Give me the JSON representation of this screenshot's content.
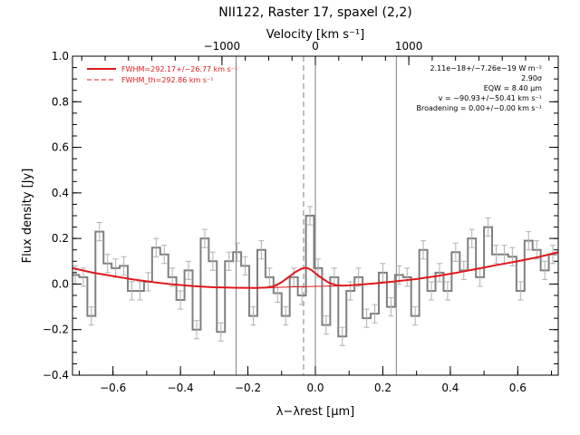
{
  "chart_data": {
    "type": "line",
    "title": "NII122, Raster 17, spaxel (2,2)",
    "xlabel": "λ−λrest [μm]",
    "ylabel": "Flux density [Jy]",
    "top_xlabel": "Velocity [km s⁻¹]",
    "xlim": [
      -0.72,
      0.72
    ],
    "ylim": [
      -0.4,
      1.0
    ],
    "x_ticks": [
      -0.6,
      -0.4,
      -0.2,
      0.0,
      0.2,
      0.4,
      0.6
    ],
    "x_tick_labels": [
      "−0.6",
      "−0.4",
      "−0.2",
      "0.0",
      "0.2",
      "0.4",
      "0.6"
    ],
    "y_ticks": [
      -0.4,
      -0.2,
      0.0,
      0.2,
      0.4,
      0.6,
      0.8,
      1.0
    ],
    "y_tick_labels": [
      "−0.4",
      "−0.2",
      "0.0",
      "0.2",
      "0.4",
      "0.6",
      "0.8",
      "1.0"
    ],
    "top_x_ticks": [
      -1000,
      0,
      1000
    ],
    "top_x_tick_labels": [
      "−1000",
      "0",
      "1000"
    ],
    "vertical_lines": [
      {
        "x": -0.235,
        "style": "solid"
      },
      {
        "x": -0.035,
        "style": "dashed"
      },
      {
        "x": 0.0,
        "style": "solid"
      },
      {
        "x": 0.24,
        "style": "solid"
      }
    ],
    "legend": {
      "placement": "top-left",
      "entries": [
        {
          "label": "FWHM=292.17+/−26.77 km s⁻¹",
          "style": "solid",
          "color": "#e0191d"
        },
        {
          "label": "FWHM_th=292.86 km s⁻¹",
          "style": "dashed",
          "color": "#e0191d"
        }
      ]
    },
    "annotations": [
      "2.11e−18+/−7.26e−19 W m⁻²",
      "2.90σ",
      "EQW = 8.40 μm",
      "v = −90.93+/−50.41 km s⁻¹",
      "Broadening = 0.00+/−0.00 km s⁻¹"
    ],
    "series": [
      {
        "type": "step",
        "color": "#808080",
        "x": [
          -0.712,
          -0.688,
          -0.664,
          -0.64,
          -0.616,
          -0.592,
          -0.568,
          -0.544,
          -0.52,
          -0.496,
          -0.472,
          -0.448,
          -0.424,
          -0.4,
          -0.376,
          -0.352,
          -0.328,
          -0.304,
          -0.28,
          -0.256,
          -0.232,
          -0.208,
          -0.184,
          -0.16,
          -0.136,
          -0.112,
          -0.088,
          -0.064,
          -0.04,
          -0.016,
          0.008,
          0.032,
          0.056,
          0.08,
          0.104,
          0.128,
          0.152,
          0.176,
          0.2,
          0.224,
          0.248,
          0.272,
          0.296,
          0.32,
          0.344,
          0.368,
          0.392,
          0.416,
          0.44,
          0.464,
          0.488,
          0.512,
          0.536,
          0.56,
          0.584,
          0.608,
          0.632,
          0.656,
          0.68,
          0.704
        ],
        "y": [
          0.04,
          0.03,
          -0.14,
          0.23,
          0.09,
          0.07,
          0.08,
          -0.03,
          -0.03,
          0.01,
          0.16,
          0.13,
          0.03,
          -0.07,
          0.06,
          -0.2,
          0.2,
          0.1,
          -0.21,
          0.1,
          0.14,
          0.08,
          -0.14,
          0.15,
          0.03,
          -0.04,
          -0.14,
          0.03,
          -0.05,
          0.3,
          0.07,
          -0.18,
          0.03,
          -0.23,
          -0.03,
          0.03,
          -0.15,
          -0.13,
          0.05,
          -0.1,
          0.04,
          0.03,
          -0.14,
          0.15,
          -0.03,
          0.05,
          -0.03,
          0.14,
          0.06,
          0.2,
          0.03,
          0.25,
          0.13,
          0.13,
          0.12,
          -0.03,
          0.19,
          0.15,
          0.06,
          0.13
        ],
        "err": [
          0.04,
          0.04,
          0.04,
          0.04,
          0.04,
          0.04,
          0.04,
          0.04,
          0.04,
          0.04,
          0.04,
          0.04,
          0.04,
          0.04,
          0.04,
          0.04,
          0.04,
          0.04,
          0.04,
          0.04,
          0.04,
          0.04,
          0.04,
          0.04,
          0.04,
          0.04,
          0.04,
          0.04,
          0.04,
          0.04,
          0.04,
          0.04,
          0.04,
          0.04,
          0.04,
          0.04,
          0.04,
          0.04,
          0.04,
          0.04,
          0.04,
          0.04,
          0.04,
          0.04,
          0.04,
          0.04,
          0.04,
          0.04,
          0.04,
          0.04,
          0.04,
          0.04,
          0.04,
          0.04,
          0.04,
          0.04,
          0.04,
          0.04,
          0.04,
          0.04
        ]
      },
      {
        "type": "line",
        "color": "#e0191d",
        "width": 2,
        "x": [
          -0.72,
          -0.66,
          -0.6,
          -0.54,
          -0.48,
          -0.42,
          -0.36,
          -0.3,
          -0.24,
          -0.18,
          -0.14,
          -0.12,
          -0.1,
          -0.08,
          -0.06,
          -0.04,
          -0.03,
          -0.02,
          -0.01,
          0.0,
          0.02,
          0.04,
          0.06,
          0.08,
          0.1,
          0.12,
          0.18,
          0.24,
          0.3,
          0.36,
          0.42,
          0.48,
          0.54,
          0.6,
          0.66,
          0.72
        ],
        "y": [
          0.07,
          0.05,
          0.035,
          0.02,
          0.008,
          -0.002,
          -0.009,
          -0.014,
          -0.016,
          -0.017,
          -0.015,
          -0.008,
          0.008,
          0.03,
          0.052,
          0.068,
          0.071,
          0.068,
          0.06,
          0.047,
          0.025,
          0.006,
          -0.004,
          -0.007,
          -0.006,
          -0.004,
          0.003,
          0.012,
          0.022,
          0.035,
          0.05,
          0.067,
          0.084,
          0.1,
          0.118,
          0.14
        ]
      },
      {
        "type": "line",
        "color": "#e0191d",
        "width": 1,
        "x": [
          -0.72,
          -0.66,
          -0.6,
          -0.54,
          -0.48,
          -0.42,
          -0.36,
          -0.3,
          -0.24,
          -0.18,
          -0.12,
          -0.06,
          0.0,
          0.06,
          0.12,
          0.18,
          0.24,
          0.3,
          0.36,
          0.42,
          0.48,
          0.54,
          0.6,
          0.66,
          0.72
        ],
        "y": [
          0.07,
          0.05,
          0.035,
          0.02,
          0.008,
          -0.002,
          -0.009,
          -0.014,
          -0.016,
          -0.017,
          -0.015,
          -0.012,
          -0.01,
          -0.008,
          -0.004,
          0.003,
          0.012,
          0.022,
          0.035,
          0.05,
          0.067,
          0.084,
          0.1,
          0.118,
          0.14
        ]
      }
    ]
  }
}
